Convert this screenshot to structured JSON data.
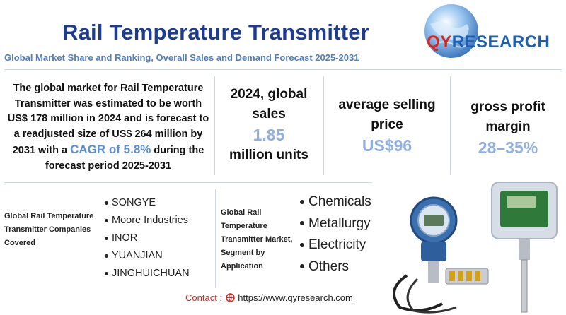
{
  "header": {
    "title": "Rail Temperature Transmitter",
    "subtitle": "Global Market Share and Ranking, Overall Sales and Demand Forecast 2025-2031"
  },
  "logo": {
    "brand_prefix": "QY",
    "brand_suffix": "RESEARCH",
    "colors": {
      "red": "#d8261f",
      "blue": "#1f5fb0"
    }
  },
  "description": {
    "part1": "The global market for Rail Temperature Transmitter was estimated to be worth US$ 178 million in 2024 and is forecast to a readjusted size of US$ 264 million by 2031 with a",
    "highlight": "CAGR of 5.8%",
    "part2": "during the forecast period 2025-2031"
  },
  "stats": {
    "sales": {
      "label": "2024, global sales",
      "value": "1.85",
      "unit": "million units"
    },
    "asp": {
      "label": "average selling price",
      "value": "US$96"
    },
    "margin": {
      "label": "gross profit margin",
      "value": "28–35%"
    }
  },
  "companies": {
    "label": "Global Rail Temperature Transmitter Companies Covered",
    "items": [
      "SONGYE",
      "Moore Industries",
      "INOR",
      "YUANJIAN",
      "JINGHUICHUAN"
    ]
  },
  "applications": {
    "label": "Global Rail Temperature Transmitter Market, Segment by Application",
    "items": [
      "Chemicals",
      "Metallurgy",
      "Electricity",
      "Others"
    ]
  },
  "contact": {
    "label": "Contact :",
    "url": "https://www.qyresearch.com"
  },
  "icons": {
    "logo": "globe-logo-icon",
    "contact": "globe-small-icon",
    "product": "temperature-transmitter-device-icon"
  }
}
